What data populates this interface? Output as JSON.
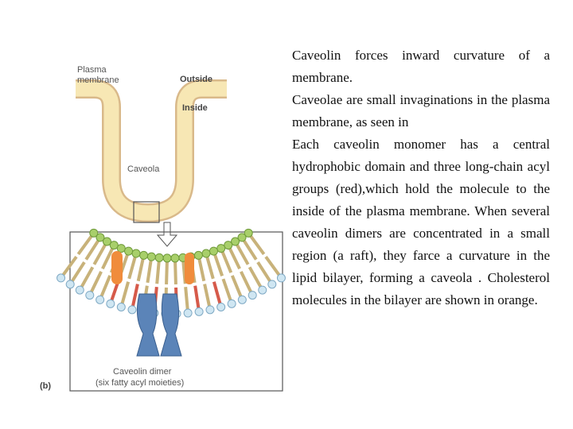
{
  "figure": {
    "labels": {
      "plasma_membrane": "Plasma membrane",
      "outside": "Outside",
      "inside": "Inside",
      "caveola": "Caveola",
      "caveolin_dimer": "Caveolin dimer",
      "dimer_note": "(six fatty acyl moieties)",
      "panel": "(b)"
    }
  },
  "text": {
    "paragraphs": [
      "Caveolin forces inward curvature of a membrane.",
      "Caveolae are small invaginations in the plasma membrane, as seen in",
      "Each caveolin monomer has a central hydrophobic domain and three long-chain acyl groups (red),which hold the molecule to the inside of the plasma membrane. When several caveolin dimers are concentrated in a small region (a raft), they farce a curvature in the lipid bilayer, forming a caveola . Cholesterol molecules in the bilayer are shown in orange."
    ]
  }
}
